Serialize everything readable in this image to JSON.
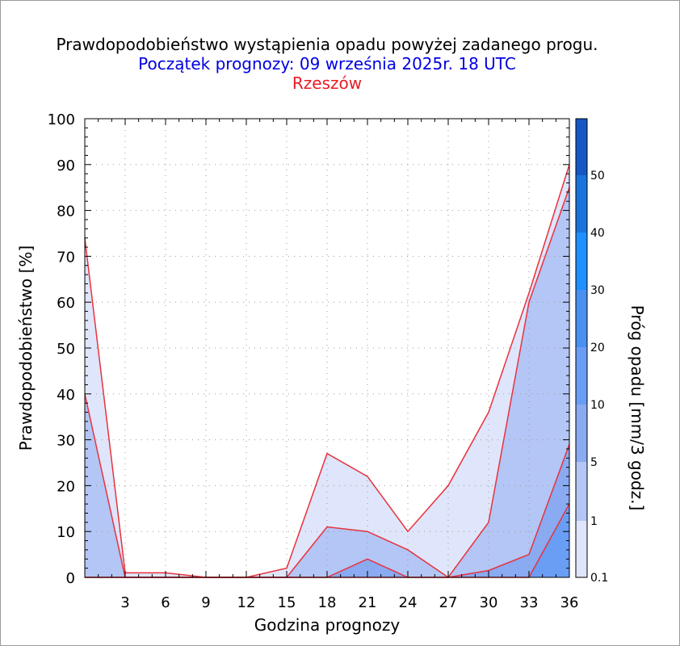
{
  "title": "Prawdopodobieństwo wystąpienia opadu powyżej zadanego progu.",
  "subtitle": "Początek prognozy: 09 września 2025r. 18 UTC",
  "location": "Rzeszów",
  "colors": {
    "title": "#000000",
    "subtitle": "#0000e0",
    "location": "#e81c24",
    "outline": "#e8323c",
    "grid": "#9a9a9a"
  },
  "chart_data": {
    "type": "area",
    "xlabel": "Godzina prognozy",
    "ylabel": "Prawdopodobieństwo [%]",
    "colorbar_label": "Próg opadu [mm/3 godz.]",
    "xlim": [
      0,
      36
    ],
    "ylim": [
      0,
      100
    ],
    "x_ticks": [
      3,
      6,
      9,
      12,
      15,
      18,
      21,
      24,
      27,
      30,
      33,
      36
    ],
    "y_ticks": [
      0,
      10,
      20,
      30,
      40,
      50,
      60,
      70,
      80,
      90,
      100
    ],
    "grid": true,
    "x": [
      0,
      3,
      6,
      9,
      12,
      15,
      18,
      21,
      24,
      27,
      30,
      33,
      36
    ],
    "series": [
      {
        "name": "0.1",
        "color": "#dfe5fb",
        "values": [
          74,
          1,
          1,
          0,
          0,
          2,
          27,
          22,
          10,
          20,
          36,
          62,
          90
        ]
      },
      {
        "name": "1",
        "color": "#b3c6f5",
        "values": [
          40,
          0,
          0,
          0,
          0,
          0,
          11,
          10,
          6,
          0,
          12,
          60,
          85
        ]
      },
      {
        "name": "5",
        "color": "#8aaaf1",
        "values": [
          0,
          0,
          0,
          0,
          0,
          0,
          0,
          4,
          0,
          0,
          1.5,
          5,
          29
        ]
      },
      {
        "name": "10",
        "color": "#6a9ef5",
        "values": [
          0,
          0,
          0,
          0,
          0,
          0,
          0,
          0,
          0,
          0,
          0,
          0,
          16
        ]
      }
    ],
    "colorbar": {
      "levels": [
        "0.1",
        "1",
        "5",
        "10",
        "20",
        "30",
        "40",
        "50"
      ],
      "colors": [
        "#dfe5fb",
        "#b3c6f5",
        "#8aaaf1",
        "#6a9ef5",
        "#4a8ff2",
        "#1e90ff",
        "#1a73dd",
        "#1557c4",
        "#0f3fa6"
      ]
    }
  }
}
